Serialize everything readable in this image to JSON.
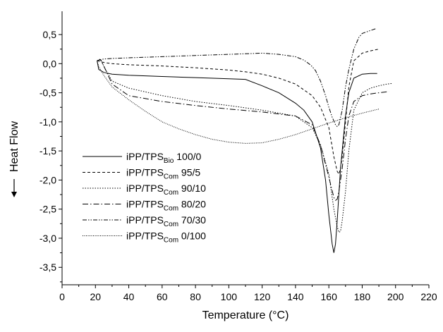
{
  "chart_data": {
    "type": "line",
    "xlabel": "Temperature (°C)",
    "ylabel": "Heat Flow",
    "xlim": [
      0,
      220
    ],
    "ylim": [
      -3.8,
      0.9
    ],
    "x_ticks": [
      0,
      20,
      40,
      60,
      80,
      100,
      120,
      140,
      160,
      180,
      200,
      220
    ],
    "y_ticks": [
      0.5,
      0.0,
      -0.5,
      -1.0,
      -1.5,
      -2.0,
      -2.5,
      -3.0,
      -3.5
    ],
    "x_tick_labels": [
      "0",
      "20",
      "40",
      "60",
      "80",
      "100",
      "120",
      "140",
      "160",
      "180",
      "200",
      "220"
    ],
    "y_tick_labels": [
      "0,5",
      "0,0",
      "-0,5",
      "-1,0",
      "-1,5",
      "-2,0",
      "-2,5",
      "-3,0",
      "-3,5"
    ],
    "grid": false,
    "legend_position": "lower-left",
    "series": [
      {
        "name": "iPP/TPSBio 100/0",
        "legend_main": "iPP/TPS",
        "legend_sub": "Bio",
        "legend_tail": " 100/0",
        "dash": "solid",
        "x": [
          21,
          22,
          25,
          30,
          40,
          60,
          80,
          100,
          110,
          120,
          130,
          140,
          145,
          150,
          155,
          158,
          160,
          162,
          163,
          164,
          165,
          167,
          170,
          172,
          175,
          180,
          185,
          189
        ],
        "y": [
          0.05,
          -0.1,
          -0.15,
          -0.18,
          -0.2,
          -0.22,
          -0.24,
          -0.26,
          -0.27,
          -0.38,
          -0.5,
          -0.68,
          -0.8,
          -1.0,
          -1.45,
          -2.0,
          -2.6,
          -3.1,
          -3.25,
          -3.1,
          -2.7,
          -1.8,
          -0.9,
          -0.5,
          -0.25,
          -0.18,
          -0.17,
          -0.17
        ]
      },
      {
        "name": "iPP/TPSCom 95/5",
        "legend_main": "iPP/TPS",
        "legend_sub": "Com",
        "legend_tail": " 95/5",
        "dash": "4,3",
        "x": [
          21,
          25,
          30,
          40,
          60,
          80,
          100,
          110,
          120,
          130,
          140,
          150,
          155,
          160,
          163,
          165,
          166,
          167,
          168,
          170,
          172,
          175,
          180,
          185,
          190
        ],
        "y": [
          0.05,
          0.02,
          0.0,
          -0.02,
          -0.04,
          -0.07,
          -0.11,
          -0.14,
          -0.18,
          -0.25,
          -0.35,
          -0.55,
          -0.75,
          -1.1,
          -1.6,
          -1.85,
          -1.9,
          -1.8,
          -1.6,
          -1.0,
          -0.4,
          0.05,
          0.18,
          0.22,
          0.25
        ]
      },
      {
        "name": "iPP/TPSCom 90/10",
        "legend_main": "iPP/TPS",
        "legend_sub": "Com",
        "legend_tail": " 90/10",
        "dash": "1.5,2",
        "x": [
          21,
          23,
          26,
          30,
          40,
          60,
          80,
          100,
          120,
          140,
          150,
          155,
          160,
          163,
          165,
          166,
          167,
          168,
          170,
          172,
          175,
          180,
          185,
          190,
          195,
          198
        ],
        "y": [
          0.05,
          0.08,
          -0.1,
          -0.3,
          -0.42,
          -0.55,
          -0.65,
          -0.72,
          -0.8,
          -0.9,
          -1.1,
          -1.4,
          -1.9,
          -2.5,
          -2.8,
          -2.9,
          -2.88,
          -2.7,
          -2.2,
          -1.5,
          -0.8,
          -0.5,
          -0.42,
          -0.38,
          -0.35,
          -0.34
        ]
      },
      {
        "name": "iPP/TPSCom 80/20",
        "legend_main": "iPP/TPS",
        "legend_sub": "Com",
        "legend_tail": " 80/20",
        "dash": "8,3,1.5,3",
        "x": [
          21,
          23,
          26,
          30,
          40,
          60,
          80,
          100,
          120,
          140,
          150,
          155,
          160,
          163,
          164,
          165,
          166,
          168,
          170,
          172,
          175,
          180,
          185,
          190,
          196
        ],
        "y": [
          0.05,
          0.07,
          -0.1,
          -0.35,
          -0.55,
          -0.65,
          -0.72,
          -0.78,
          -0.83,
          -0.9,
          -1.05,
          -1.4,
          -1.95,
          -2.3,
          -2.35,
          -2.33,
          -2.2,
          -1.8,
          -1.3,
          -0.9,
          -0.65,
          -0.55,
          -0.52,
          -0.5,
          -0.48
        ]
      },
      {
        "name": "iPP/TPSCom 70/30",
        "legend_main": "iPP/TPS",
        "legend_sub": "Com",
        "legend_tail": " 70/30",
        "dash": "6,2,1.5,2,1.5,2",
        "x": [
          21,
          25,
          30,
          40,
          60,
          80,
          100,
          120,
          130,
          140,
          145,
          148,
          150,
          152,
          155,
          158,
          160,
          162,
          164,
          165,
          166,
          168,
          170,
          172,
          175,
          178,
          180,
          185,
          188
        ],
        "y": [
          0.05,
          0.08,
          0.09,
          0.1,
          0.12,
          0.14,
          0.16,
          0.18,
          0.16,
          0.12,
          0.06,
          0.0,
          -0.05,
          -0.12,
          -0.3,
          -0.55,
          -0.75,
          -0.92,
          -1.05,
          -1.08,
          -1.05,
          -0.8,
          -0.4,
          -0.1,
          0.25,
          0.45,
          0.52,
          0.57,
          0.6
        ]
      },
      {
        "name": "iPP/TPSCom 0/100",
        "legend_main": "iPP/TPS",
        "legend_sub": "Com",
        "legend_tail": " 0/100",
        "dash": "1,1.5",
        "x": [
          21,
          22,
          25,
          30,
          40,
          50,
          60,
          70,
          80,
          90,
          100,
          110,
          120,
          130,
          140,
          150,
          160,
          170,
          180,
          190
        ],
        "y": [
          0.05,
          -0.05,
          -0.2,
          -0.4,
          -0.62,
          -0.82,
          -1.0,
          -1.12,
          -1.22,
          -1.3,
          -1.35,
          -1.37,
          -1.36,
          -1.3,
          -1.22,
          -1.12,
          -1.02,
          -0.93,
          -0.85,
          -0.78
        ]
      }
    ]
  }
}
